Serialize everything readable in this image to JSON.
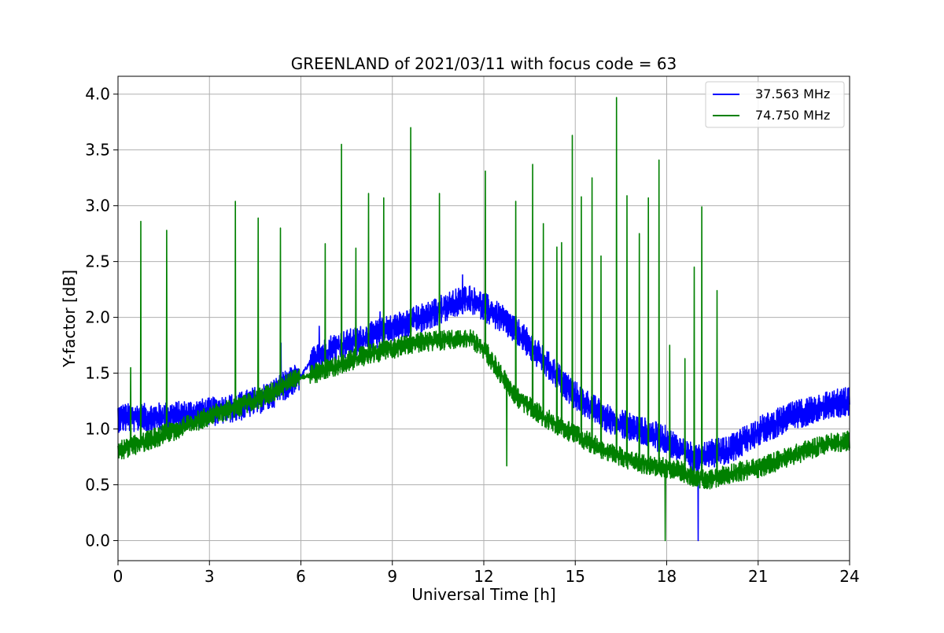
{
  "chart_data": {
    "type": "line",
    "title": "GREENLAND of 2021/03/11 with focus code = 63",
    "xlabel": "Universal Time [h]",
    "ylabel": "Y-factor [dB]",
    "xlim": [
      0,
      24
    ],
    "ylim": [
      -0.18,
      4.16
    ],
    "xticks": [
      0,
      3,
      6,
      9,
      12,
      15,
      18,
      21,
      24
    ],
    "xtick_labels": [
      "0",
      "3",
      "6",
      "9",
      "12",
      "15",
      "18",
      "21",
      "24"
    ],
    "yticks": [
      0.0,
      0.5,
      1.0,
      1.5,
      2.0,
      2.5,
      3.0,
      3.5,
      4.0
    ],
    "ytick_labels": [
      "0.0",
      "0.5",
      "1.0",
      "1.5",
      "2.0",
      "2.5",
      "3.0",
      "3.5",
      "4.0"
    ],
    "grid": true,
    "legend_position": "top-right",
    "series": [
      {
        "name": "37.563 MHz",
        "color": "#0000ff",
        "noise_amplitude": 0.13,
        "x": [
          0,
          1,
          2,
          3,
          4,
          5,
          5.9,
          6.0,
          6.3,
          7,
          8,
          9,
          10,
          11,
          11.5,
          12,
          13,
          14,
          15,
          16,
          17,
          18,
          18.5,
          19,
          19.5,
          20,
          21,
          22,
          23,
          24
        ],
        "y": [
          1.1,
          1.1,
          1.12,
          1.15,
          1.2,
          1.3,
          1.47,
          1.47,
          1.6,
          1.72,
          1.8,
          1.9,
          2.0,
          2.12,
          2.17,
          2.1,
          1.9,
          1.6,
          1.3,
          1.1,
          1.0,
          0.9,
          0.8,
          0.72,
          0.78,
          0.8,
          0.98,
          1.1,
          1.2,
          1.25
        ],
        "spikes": [
          {
            "x": 5.35,
            "y": 1.77
          },
          {
            "x": 6.6,
            "y": 1.92
          },
          {
            "x": 8.6,
            "y": 2.05
          },
          {
            "x": 11.3,
            "y": 2.38
          },
          {
            "x": 19.03,
            "y": 0.0
          }
        ]
      },
      {
        "name": "74.750 MHz",
        "color": "#008000",
        "noise_amplitude": 0.09,
        "x": [
          0,
          1,
          2,
          3,
          4,
          5,
          5.9,
          6.0,
          6.3,
          7,
          8,
          9,
          10,
          11,
          11.5,
          12,
          12.5,
          13,
          14,
          15,
          16,
          17,
          18,
          18.5,
          19,
          19.5,
          20,
          21,
          22,
          23,
          24
        ],
        "y": [
          0.8,
          0.9,
          1.0,
          1.12,
          1.2,
          1.32,
          1.46,
          1.46,
          1.48,
          1.55,
          1.65,
          1.72,
          1.78,
          1.8,
          1.82,
          1.72,
          1.52,
          1.3,
          1.1,
          0.95,
          0.8,
          0.7,
          0.65,
          0.62,
          0.55,
          0.55,
          0.6,
          0.65,
          0.75,
          0.85,
          0.9
        ],
        "spikes": [
          {
            "x": 0.42,
            "y": 1.55
          },
          {
            "x": 0.75,
            "y": 2.86
          },
          {
            "x": 1.6,
            "y": 2.78
          },
          {
            "x": 3.85,
            "y": 3.04
          },
          {
            "x": 4.6,
            "y": 2.89
          },
          {
            "x": 5.33,
            "y": 2.8
          },
          {
            "x": 6.8,
            "y": 2.66
          },
          {
            "x": 7.33,
            "y": 3.55
          },
          {
            "x": 7.8,
            "y": 2.62
          },
          {
            "x": 8.22,
            "y": 3.11
          },
          {
            "x": 8.72,
            "y": 3.07
          },
          {
            "x": 9.6,
            "y": 3.7
          },
          {
            "x": 10.55,
            "y": 3.11
          },
          {
            "x": 12.05,
            "y": 3.31
          },
          {
            "x": 12.75,
            "y": 0.67
          },
          {
            "x": 13.05,
            "y": 3.04
          },
          {
            "x": 13.6,
            "y": 3.37
          },
          {
            "x": 13.95,
            "y": 2.84
          },
          {
            "x": 14.4,
            "y": 2.63
          },
          {
            "x": 14.55,
            "y": 2.67
          },
          {
            "x": 14.9,
            "y": 3.63
          },
          {
            "x": 15.2,
            "y": 3.08
          },
          {
            "x": 15.55,
            "y": 3.25
          },
          {
            "x": 15.85,
            "y": 2.55
          },
          {
            "x": 16.35,
            "y": 3.97
          },
          {
            "x": 16.7,
            "y": 3.09
          },
          {
            "x": 17.1,
            "y": 2.75
          },
          {
            "x": 17.4,
            "y": 3.07
          },
          {
            "x": 17.75,
            "y": 3.41
          },
          {
            "x": 17.95,
            "y": 0.0
          },
          {
            "x": 18.1,
            "y": 1.75
          },
          {
            "x": 18.6,
            "y": 1.63
          },
          {
            "x": 18.9,
            "y": 2.45
          },
          {
            "x": 19.15,
            "y": 2.99
          },
          {
            "x": 19.65,
            "y": 2.24
          }
        ]
      }
    ]
  }
}
